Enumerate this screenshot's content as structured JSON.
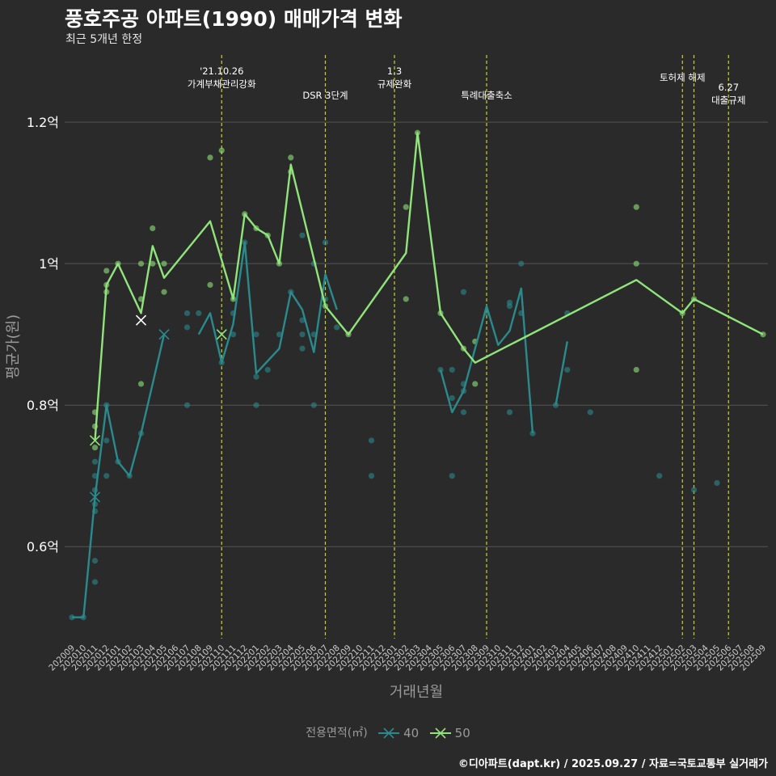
{
  "title": "풍호주공 아파트(1990) 매매가격 변화",
  "subtitle": "최근 5개년 한정",
  "caption": "©디아파트(dapt.kr) / 2025.09.27 / 자료=국토교통부 실거래가",
  "colors": {
    "background": "#2a2a2b",
    "grid": "#555555",
    "series40": "#2a8a8c",
    "series50": "#90e57a",
    "event_line": "#c8d22a",
    "axis_text": "#9a9a9a"
  },
  "chart_data": {
    "type": "line",
    "title": "풍호주공 아파트(1990) 매매가격 변화",
    "subtitle": "최근 5개년 한정",
    "xlabel": "거래년월",
    "ylabel": "평균가(원)",
    "ylim": [
      0.47,
      1.295
    ],
    "y_ticks": [
      {
        "value": 0.6,
        "label": "0.6억"
      },
      {
        "value": 0.8,
        "label": "0.8억"
      },
      {
        "value": 1.0,
        "label": "1억"
      },
      {
        "value": 1.2,
        "label": "1.2억"
      }
    ],
    "x_categories": [
      "202009",
      "202010",
      "202011",
      "202012",
      "202101",
      "202102",
      "202103",
      "202104",
      "202105",
      "202106",
      "202107",
      "202108",
      "202109",
      "202110",
      "202111",
      "202112",
      "202201",
      "202202",
      "202203",
      "202204",
      "202205",
      "202206",
      "202207",
      "202208",
      "202209",
      "202210",
      "202211",
      "202212",
      "202301",
      "202302",
      "202303",
      "202304",
      "202305",
      "202306",
      "202307",
      "202308",
      "202309",
      "202310",
      "202311",
      "202312",
      "202401",
      "202402",
      "202403",
      "202404",
      "202405",
      "202406",
      "202407",
      "202408",
      "202409",
      "202410",
      "202411",
      "202412",
      "202501",
      "202502",
      "202503",
      "202504",
      "202505",
      "202506",
      "202507",
      "202508",
      "202509"
    ],
    "legend": {
      "title": "전용면적(㎡)",
      "entries": [
        {
          "label": "40",
          "color": "#2a8a8c"
        },
        {
          "label": "50",
          "color": "#90e57a"
        }
      ]
    },
    "events": [
      {
        "x": 13,
        "label_lines": [
          "'21.10.26",
          "가계부채관리강화"
        ],
        "row": 0
      },
      {
        "x": 22,
        "label_lines": [
          "DSR 3단계"
        ],
        "row": 2
      },
      {
        "x": 28,
        "label_lines": [
          "1.3",
          "규제완화"
        ],
        "row": 0
      },
      {
        "x": 36,
        "label_lines": [
          "특례대출축소"
        ],
        "row": 2
      },
      {
        "x": 53,
        "label_lines": [
          "토허제 해제"
        ],
        "row": 1
      },
      {
        "x": 54,
        "label_lines": [],
        "row": 1
      },
      {
        "x": 57,
        "label_lines": [
          "6.27",
          "대출규제"
        ],
        "row": 2
      }
    ],
    "series": [
      {
        "name": "40",
        "color": "#2a8a8c",
        "segments": [
          [
            [
              0,
              0.5
            ],
            [
              1,
              0.5
            ],
            [
              2,
              0.67
            ],
            [
              3,
              0.8
            ],
            [
              4,
              0.72
            ],
            [
              5,
              0.7
            ],
            [
              6,
              0.76
            ],
            [
              7,
              0.83
            ],
            [
              8,
              0.9
            ]
          ],
          [
            [
              11,
              0.9
            ],
            [
              12,
              0.93
            ],
            [
              13,
              0.86
            ],
            [
              14,
              0.915
            ],
            [
              15,
              1.03
            ],
            [
              16,
              0.845
            ],
            [
              18,
              0.88
            ],
            [
              19,
              0.96
            ],
            [
              20,
              0.935
            ],
            [
              21,
              0.875
            ],
            [
              22,
              0.985
            ],
            [
              23,
              0.935
            ]
          ],
          [
            [
              32,
              0.85
            ],
            [
              33,
              0.79
            ],
            [
              34,
              0.82
            ],
            [
              36,
              0.94
            ],
            [
              37,
              0.885
            ],
            [
              38,
              0.905
            ],
            [
              39,
              0.965
            ],
            [
              40,
              0.76
            ]
          ],
          [
            [
              42,
              0.8
            ],
            [
              43,
              0.89
            ]
          ]
        ],
        "points": [
          [
            0,
            0.5
          ],
          [
            1,
            0.5
          ],
          [
            2,
            0.55
          ],
          [
            2,
            0.58
          ],
          [
            2,
            0.65
          ],
          [
            2,
            0.66
          ],
          [
            2,
            0.68
          ],
          [
            2,
            0.7
          ],
          [
            2,
            0.72
          ],
          [
            3,
            0.7
          ],
          [
            3,
            0.75
          ],
          [
            3,
            0.8
          ],
          [
            4,
            0.72
          ],
          [
            5,
            0.7
          ],
          [
            6,
            0.76
          ],
          [
            10,
            0.8
          ],
          [
            10,
            0.91
          ],
          [
            10,
            0.93
          ],
          [
            11,
            0.93
          ],
          [
            13,
            0.86
          ],
          [
            14,
            0.9
          ],
          [
            14,
            0.93
          ],
          [
            15,
            1.03
          ],
          [
            16,
            0.8
          ],
          [
            16,
            0.84
          ],
          [
            16,
            0.9
          ],
          [
            17,
            0.85
          ],
          [
            18,
            0.9
          ],
          [
            19,
            0.96
          ],
          [
            20,
            0.88
          ],
          [
            20,
            0.9
          ],
          [
            20,
            0.92
          ],
          [
            20,
            1.04
          ],
          [
            21,
            0.8
          ],
          [
            21,
            0.9
          ],
          [
            21,
            1.0
          ],
          [
            22,
            0.95
          ],
          [
            22,
            1.03
          ],
          [
            23,
            0.91
          ],
          [
            26,
            0.7
          ],
          [
            26,
            0.75
          ],
          [
            32,
            0.85
          ],
          [
            33,
            0.7
          ],
          [
            33,
            0.81
          ],
          [
            33,
            0.85
          ],
          [
            34,
            0.79
          ],
          [
            34,
            0.82
          ],
          [
            34,
            0.83
          ],
          [
            34,
            0.96
          ],
          [
            36,
            0.93
          ],
          [
            38,
            0.79
          ],
          [
            38,
            0.94
          ],
          [
            38,
            0.945
          ],
          [
            39,
            0.93
          ],
          [
            39,
            1.0
          ],
          [
            40,
            0.76
          ],
          [
            42,
            0.8
          ],
          [
            43,
            0.85
          ],
          [
            43,
            0.93
          ],
          [
            45,
            0.79
          ],
          [
            51,
            0.7
          ],
          [
            54,
            0.68
          ],
          [
            56,
            0.69
          ]
        ],
        "x_markers": [
          [
            2,
            0.67
          ],
          [
            8,
            0.9
          ]
        ]
      },
      {
        "name": "50",
        "color": "#90e57a",
        "segments": [
          [
            [
              2,
              0.75
            ],
            [
              3,
              0.97
            ],
            [
              4,
              1.0
            ],
            [
              6,
              0.93
            ],
            [
              7,
              1.025
            ],
            [
              8,
              0.98
            ],
            [
              12,
              1.06
            ],
            [
              14,
              0.95
            ],
            [
              15,
              1.07
            ],
            [
              16,
              1.05
            ],
            [
              17,
              1.04
            ],
            [
              18,
              1.0
            ],
            [
              19,
              1.14
            ],
            [
              22,
              0.94
            ],
            [
              24,
              0.9
            ],
            [
              29,
              1.015
            ],
            [
              30,
              1.185
            ],
            [
              32,
              0.93
            ],
            [
              34,
              0.88
            ],
            [
              35,
              0.86
            ],
            [
              49,
              0.977
            ],
            [
              53,
              0.93
            ],
            [
              54,
              0.95
            ],
            [
              60,
              0.9
            ]
          ]
        ],
        "points": [
          [
            2,
            0.74
          ],
          [
            2,
            0.77
          ],
          [
            2,
            0.79
          ],
          [
            3,
            0.96
          ],
          [
            3,
            0.97
          ],
          [
            3,
            0.99
          ],
          [
            4,
            1.0
          ],
          [
            6,
            0.83
          ],
          [
            6,
            0.95
          ],
          [
            6,
            1.0
          ],
          [
            7,
            1.0
          ],
          [
            7,
            1.05
          ],
          [
            8,
            0.96
          ],
          [
            8,
            1.0
          ],
          [
            12,
            0.97
          ],
          [
            12,
            1.15
          ],
          [
            13,
            1.16
          ],
          [
            14,
            0.95
          ],
          [
            15,
            1.07
          ],
          [
            16,
            1.05
          ],
          [
            17,
            1.04
          ],
          [
            18,
            1.0
          ],
          [
            19,
            1.13
          ],
          [
            19,
            1.15
          ],
          [
            22,
            0.94
          ],
          [
            24,
            0.9
          ],
          [
            29,
            0.95
          ],
          [
            29,
            1.08
          ],
          [
            30,
            1.185
          ],
          [
            32,
            0.93
          ],
          [
            34,
            0.88
          ],
          [
            35,
            0.83
          ],
          [
            35,
            0.89
          ],
          [
            49,
            0.85
          ],
          [
            49,
            1.0
          ],
          [
            49,
            1.08
          ],
          [
            53,
            0.93
          ],
          [
            54,
            0.95
          ],
          [
            60,
            0.9
          ]
        ],
        "x_markers": [
          [
            2,
            0.75
          ],
          [
            6,
            0.92
          ],
          [
            13,
            0.9
          ]
        ]
      }
    ]
  }
}
